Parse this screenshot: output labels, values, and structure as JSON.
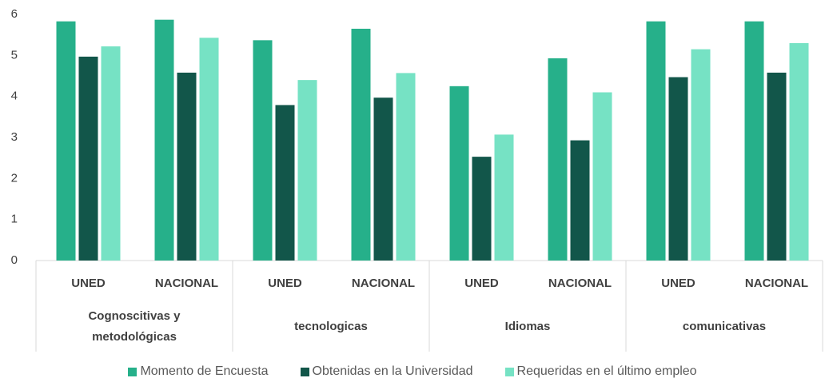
{
  "chart_data": {
    "type": "bar",
    "categories": [
      "UNED",
      "NACIONAL",
      "UNED",
      "NACIONAL",
      "UNED",
      "NACIONAL",
      "UNED",
      "NACIONAL"
    ],
    "groups": [
      "Cognoscitivas y metodológicas",
      "tecnologicas",
      "Idiomas",
      "comunicativas"
    ],
    "series": [
      {
        "name": "Momento de Encuesta",
        "color": "#26b08a",
        "values": [
          5.83,
          5.87,
          5.37,
          5.65,
          4.25,
          4.93,
          5.83,
          5.83
        ]
      },
      {
        "name": "Obtenidas en la Universidad",
        "color": "#12564a",
        "values": [
          4.97,
          4.58,
          3.79,
          3.97,
          2.53,
          2.93,
          4.47,
          4.58
        ]
      },
      {
        "name": "Requeridas en el último empleo",
        "color": "#76e2c4",
        "values": [
          5.22,
          5.43,
          4.4,
          4.57,
          3.07,
          4.1,
          5.15,
          5.3
        ]
      }
    ],
    "ylim": [
      0,
      6
    ],
    "yticks": [
      0,
      1,
      2,
      3,
      4,
      5,
      6
    ],
    "grid": false
  }
}
